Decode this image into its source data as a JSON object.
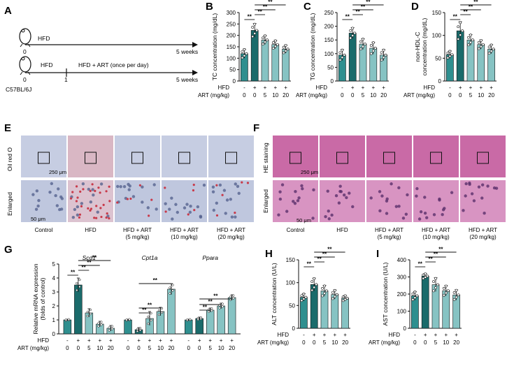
{
  "panels": {
    "A": {
      "letter": "A",
      "strain": "C57BL/6J",
      "row1_label": "HFD",
      "row1_start": "0",
      "row1_end": "5 weeks",
      "row2_label1": "HFD",
      "row2_label2": "HFD + ART (once per day)",
      "row2_start": "0",
      "row2_mid": "1",
      "row2_end": "5 weeks"
    },
    "E": {
      "letter": "E",
      "stain_label": "Oil red O",
      "enlarged_label": "Enlarged",
      "scale_top": "250 μm",
      "scale_bottom": "50 μm"
    },
    "F": {
      "letter": "F",
      "stain_label": "HE staining",
      "enlarged_label": "Enlarged",
      "scale_top": "250 μm",
      "scale_bottom": "50 μm"
    }
  },
  "micrograph_groups": [
    "Control",
    "HFD",
    "HFD + ART",
    "HFD + ART",
    "HFD + ART"
  ],
  "micrograph_doses": [
    "",
    "",
    "(5 mg/kg)",
    "(10 mg/kg)",
    "(20 mg/kg)"
  ],
  "treatment": {
    "hfd_label": "HFD",
    "art_label": "ART (mg/kg)",
    "hfd": [
      "-",
      "+",
      "+",
      "+",
      "+"
    ],
    "art": [
      "0",
      "0",
      "5",
      "10",
      "20"
    ]
  },
  "sig_label": "**",
  "colors": {
    "control": "#2f8f8f",
    "hfd": "#1a6b6b",
    "art": "#86c3c3",
    "he": "#c96aa6",
    "oil_bg": "#c6cde2"
  },
  "chart_data": [
    {
      "id": "B",
      "type": "bar",
      "ylabel": "TC concentration (mg/dL)",
      "ylim": [
        0,
        300
      ],
      "yticks": [
        0,
        50,
        100,
        150,
        200,
        250,
        300
      ],
      "categories": [
        "HFD- ART0",
        "HFD+ ART0",
        "HFD+ ART5",
        "HFD+ ART10",
        "HFD+ ART20"
      ],
      "values": [
        120,
        222,
        180,
        160,
        140
      ],
      "errors": [
        20,
        30,
        20,
        18,
        18
      ]
    },
    {
      "id": "C",
      "type": "bar",
      "ylabel": "TG concentration (mg/dL)",
      "ylim": [
        0,
        250
      ],
      "yticks": [
        0,
        50,
        100,
        150,
        200,
        250
      ],
      "categories": [
        "HFD- ART0",
        "HFD+ ART0",
        "HFD+ ART5",
        "HFD+ ART10",
        "HFD+ ART20"
      ],
      "values": [
        95,
        175,
        135,
        120,
        95
      ],
      "errors": [
        20,
        20,
        20,
        22,
        20
      ]
    },
    {
      "id": "D",
      "type": "bar",
      "ylabel": "non-HDL-C concentration (mg/dL)",
      "ylim": [
        0,
        150
      ],
      "yticks": [
        0,
        50,
        100,
        150
      ],
      "categories": [
        "HFD- ART0",
        "HFD+ ART0",
        "HFD+ ART5",
        "HFD+ ART10",
        "HFD+ ART20"
      ],
      "values": [
        58,
        110,
        90,
        80,
        70
      ],
      "errors": [
        8,
        20,
        12,
        10,
        10
      ]
    },
    {
      "id": "G",
      "type": "bar",
      "ylabel": "Relative mRNA expression (folds of control)",
      "ylim": [
        0,
        5
      ],
      "yticks": [
        0,
        1,
        2,
        3,
        4,
        5
      ],
      "genes": [
        "Scd1",
        "Cpt1a",
        "Ppara"
      ],
      "series": [
        {
          "name": "Scd1",
          "values": [
            1.0,
            3.5,
            1.5,
            0.7,
            0.4
          ],
          "errors": [
            0.05,
            0.5,
            0.3,
            0.2,
            0.2
          ]
        },
        {
          "name": "Cpt1a",
          "values": [
            1.0,
            0.3,
            1.1,
            1.6,
            3.2
          ],
          "errors": [
            0.05,
            0.15,
            0.5,
            0.3,
            0.4
          ]
        },
        {
          "name": "Ppara",
          "values": [
            1.0,
            1.1,
            1.7,
            2.0,
            2.6
          ],
          "errors": [
            0.05,
            0.1,
            0.15,
            0.2,
            0.2
          ]
        }
      ]
    },
    {
      "id": "H",
      "type": "bar",
      "ylabel": "ALT concentration (U/L)",
      "ylim": [
        0,
        150
      ],
      "yticks": [
        0,
        50,
        100,
        150
      ],
      "categories": [
        "HFD- ART0",
        "HFD+ ART0",
        "HFD+ ART5",
        "HFD+ ART10",
        "HFD+ ART20"
      ],
      "values": [
        68,
        96,
        82,
        74,
        66
      ],
      "errors": [
        8,
        14,
        12,
        10,
        6
      ]
    },
    {
      "id": "I",
      "type": "bar",
      "ylabel": "AST concentration (U/L)",
      "ylim": [
        0,
        400
      ],
      "yticks": [
        0,
        100,
        200,
        300,
        400
      ],
      "categories": [
        "HFD- ART0",
        "HFD+ ART0",
        "HFD+ ART5",
        "HFD+ ART10",
        "HFD+ ART20"
      ],
      "values": [
        190,
        305,
        255,
        220,
        195
      ],
      "errors": [
        25,
        15,
        40,
        30,
        30
      ]
    }
  ]
}
